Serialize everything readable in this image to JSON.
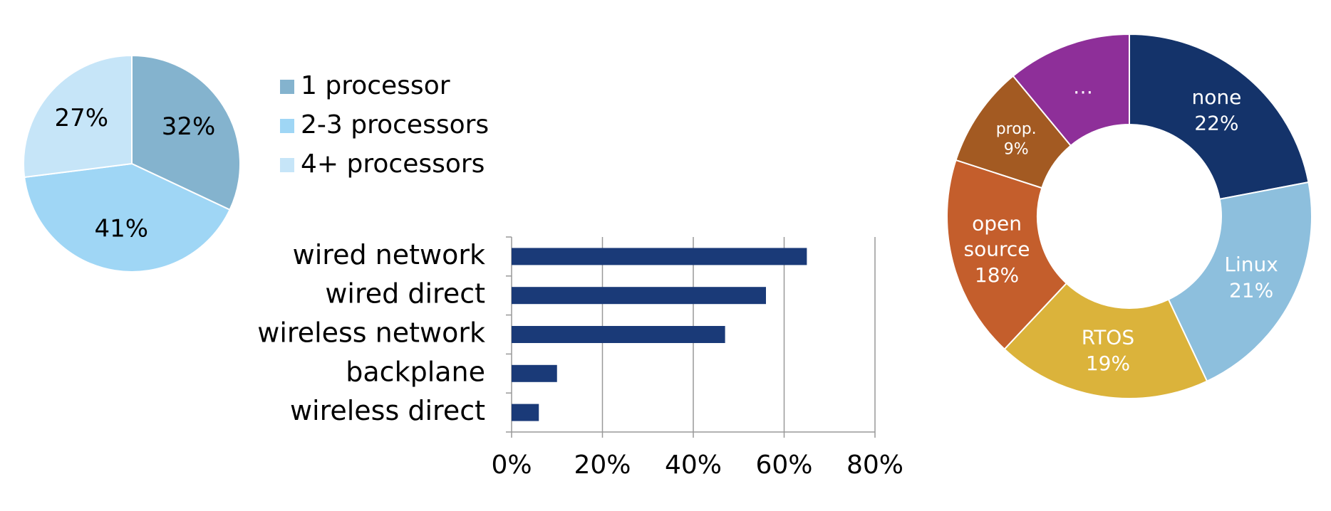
{
  "chart_data": [
    {
      "type": "pie",
      "categories": [
        "1 processor",
        "2-3 processors",
        "4+ processors"
      ],
      "values": [
        32,
        41,
        27
      ],
      "value_labels": [
        "32%",
        "41%",
        "27%"
      ],
      "colors": [
        "#84b3ce",
        "#9fd6f5",
        "#c6e5f8"
      ],
      "legend": "right"
    },
    {
      "type": "bar",
      "orientation": "horizontal",
      "categories": [
        "wired network",
        "wired direct",
        "wireless network",
        "backplane",
        "wireless direct"
      ],
      "values": [
        65,
        56,
        47,
        10,
        6
      ],
      "color": "#1a3a78",
      "xlim": [
        0,
        80
      ],
      "xticks": [
        {
          "value": 0,
          "label": "0%"
        },
        {
          "value": 20,
          "label": "20%"
        },
        {
          "value": 40,
          "label": "40%"
        },
        {
          "value": 60,
          "label": "60%"
        },
        {
          "value": 80,
          "label": "80%"
        }
      ],
      "grid": true
    },
    {
      "type": "donut",
      "categories": [
        "none",
        "Linux",
        "RTOS",
        "open source",
        "prop.",
        "…"
      ],
      "values": [
        22,
        21,
        19,
        18,
        9,
        11
      ],
      "value_labels": [
        "22%",
        "21%",
        "19%",
        "18%",
        "9%",
        null
      ],
      "colors": [
        "#14336a",
        "#8dbfdd",
        "#dbb33b",
        "#c45e2c",
        "#a35a22",
        "#8e2f99"
      ]
    }
  ]
}
